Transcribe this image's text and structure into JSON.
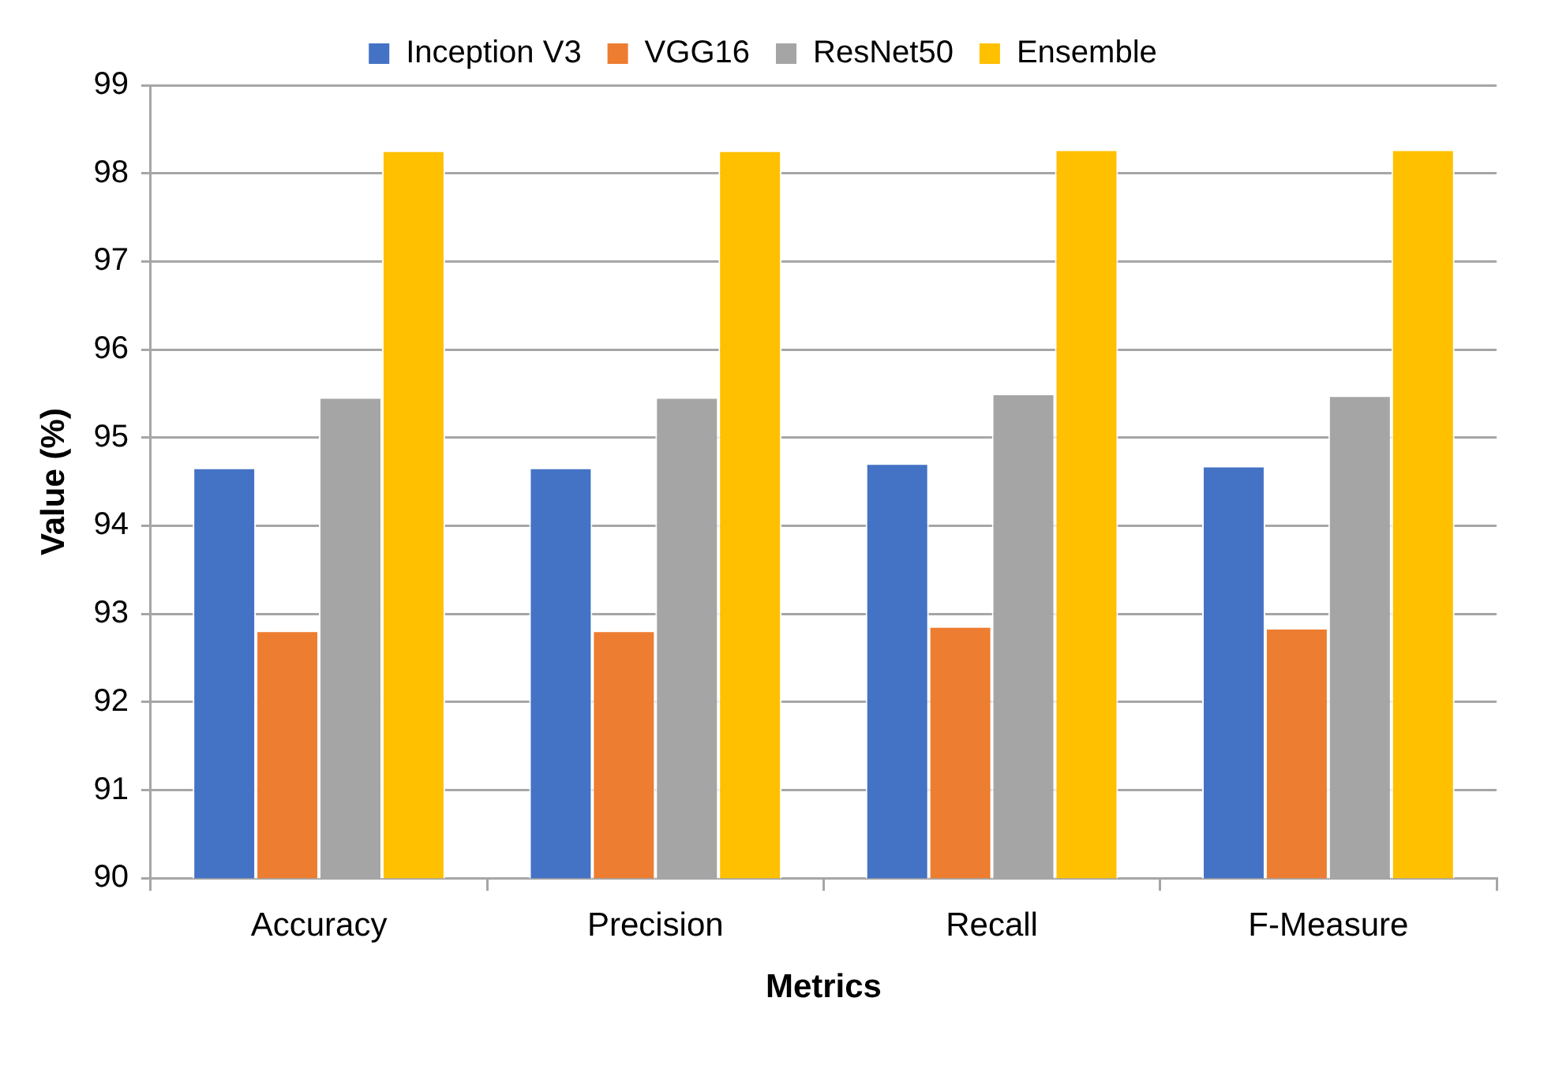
{
  "chart_data": {
    "type": "bar",
    "xlabel": "Metrics",
    "ylabel": "Value (%)",
    "categories": [
      "Accuracy",
      "Precision",
      "Recall",
      "F-Measure"
    ],
    "series": [
      {
        "name": "Inception V3",
        "color": "#4472c4",
        "values": [
          94.66,
          94.66,
          94.71,
          94.68
        ]
      },
      {
        "name": "VGG16",
        "color": "#ed7d31",
        "values": [
          92.81,
          92.81,
          92.86,
          92.84
        ]
      },
      {
        "name": "ResNet50",
        "color": "#a5a5a5",
        "values": [
          95.46,
          95.46,
          95.5,
          95.48
        ]
      },
      {
        "name": "Ensemble",
        "color": "#ffc000",
        "values": [
          98.26,
          98.26,
          98.27,
          98.27
        ]
      }
    ],
    "ylim": [
      90,
      99
    ],
    "yticks": [
      90,
      91,
      92,
      93,
      94,
      95,
      96,
      97,
      98,
      99
    ],
    "grid": "y",
    "legend": "top"
  }
}
